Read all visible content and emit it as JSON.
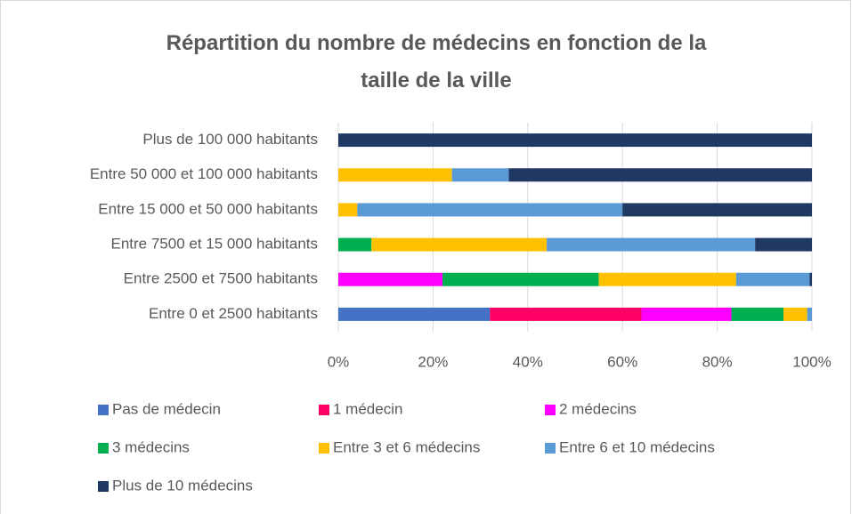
{
  "chart_data": {
    "type": "stacked_bar_horizontal",
    "title": "Répartition du nombre de médecins en fonction de la taille de la ville",
    "categories": [
      "Plus de 100 000 habitants",
      "Entre 50 000 et 100 000 habitants",
      "Entre 15 000 et 50 000 habitants",
      "Entre 7500 et 15 000 habitants",
      "Entre 2500 et 7500 habitants",
      "Entre 0 et 2500 habitants"
    ],
    "series": [
      {
        "name": "Pas de médecin",
        "color": "#4472c4",
        "values": [
          0,
          0,
          0,
          0,
          0,
          32
        ]
      },
      {
        "name": "1 médecin",
        "color": "#ff0066",
        "values": [
          0,
          0,
          0,
          0,
          0,
          32
        ]
      },
      {
        "name": "2 médecins",
        "color": "#ff00ff",
        "values": [
          0,
          0,
          0,
          0,
          22,
          19
        ]
      },
      {
        "name": "3 médecins",
        "color": "#00b050",
        "values": [
          0,
          0,
          0,
          7,
          33,
          11
        ]
      },
      {
        "name": "Entre 3 et 6 médecins",
        "color": "#ffc000",
        "values": [
          0,
          24,
          4,
          37,
          29,
          5
        ]
      },
      {
        "name": "Entre 6 et 10 médecins",
        "color": "#5b9bd5",
        "values": [
          0,
          12,
          56,
          44,
          15.5,
          1
        ]
      },
      {
        "name": "Plus de 10 médecins",
        "color": "#203864",
        "values": [
          100,
          64,
          40,
          12,
          0.5,
          0
        ]
      }
    ],
    "xlim": [
      0,
      100
    ],
    "xticks": [
      {
        "value": 0,
        "label": "0%"
      },
      {
        "value": 20,
        "label": "20%"
      },
      {
        "value": 40,
        "label": "40%"
      },
      {
        "value": 60,
        "label": "60%"
      },
      {
        "value": 80,
        "label": "80%"
      },
      {
        "value": 100,
        "label": "100%"
      }
    ],
    "grid": true,
    "legend": "bottom"
  }
}
